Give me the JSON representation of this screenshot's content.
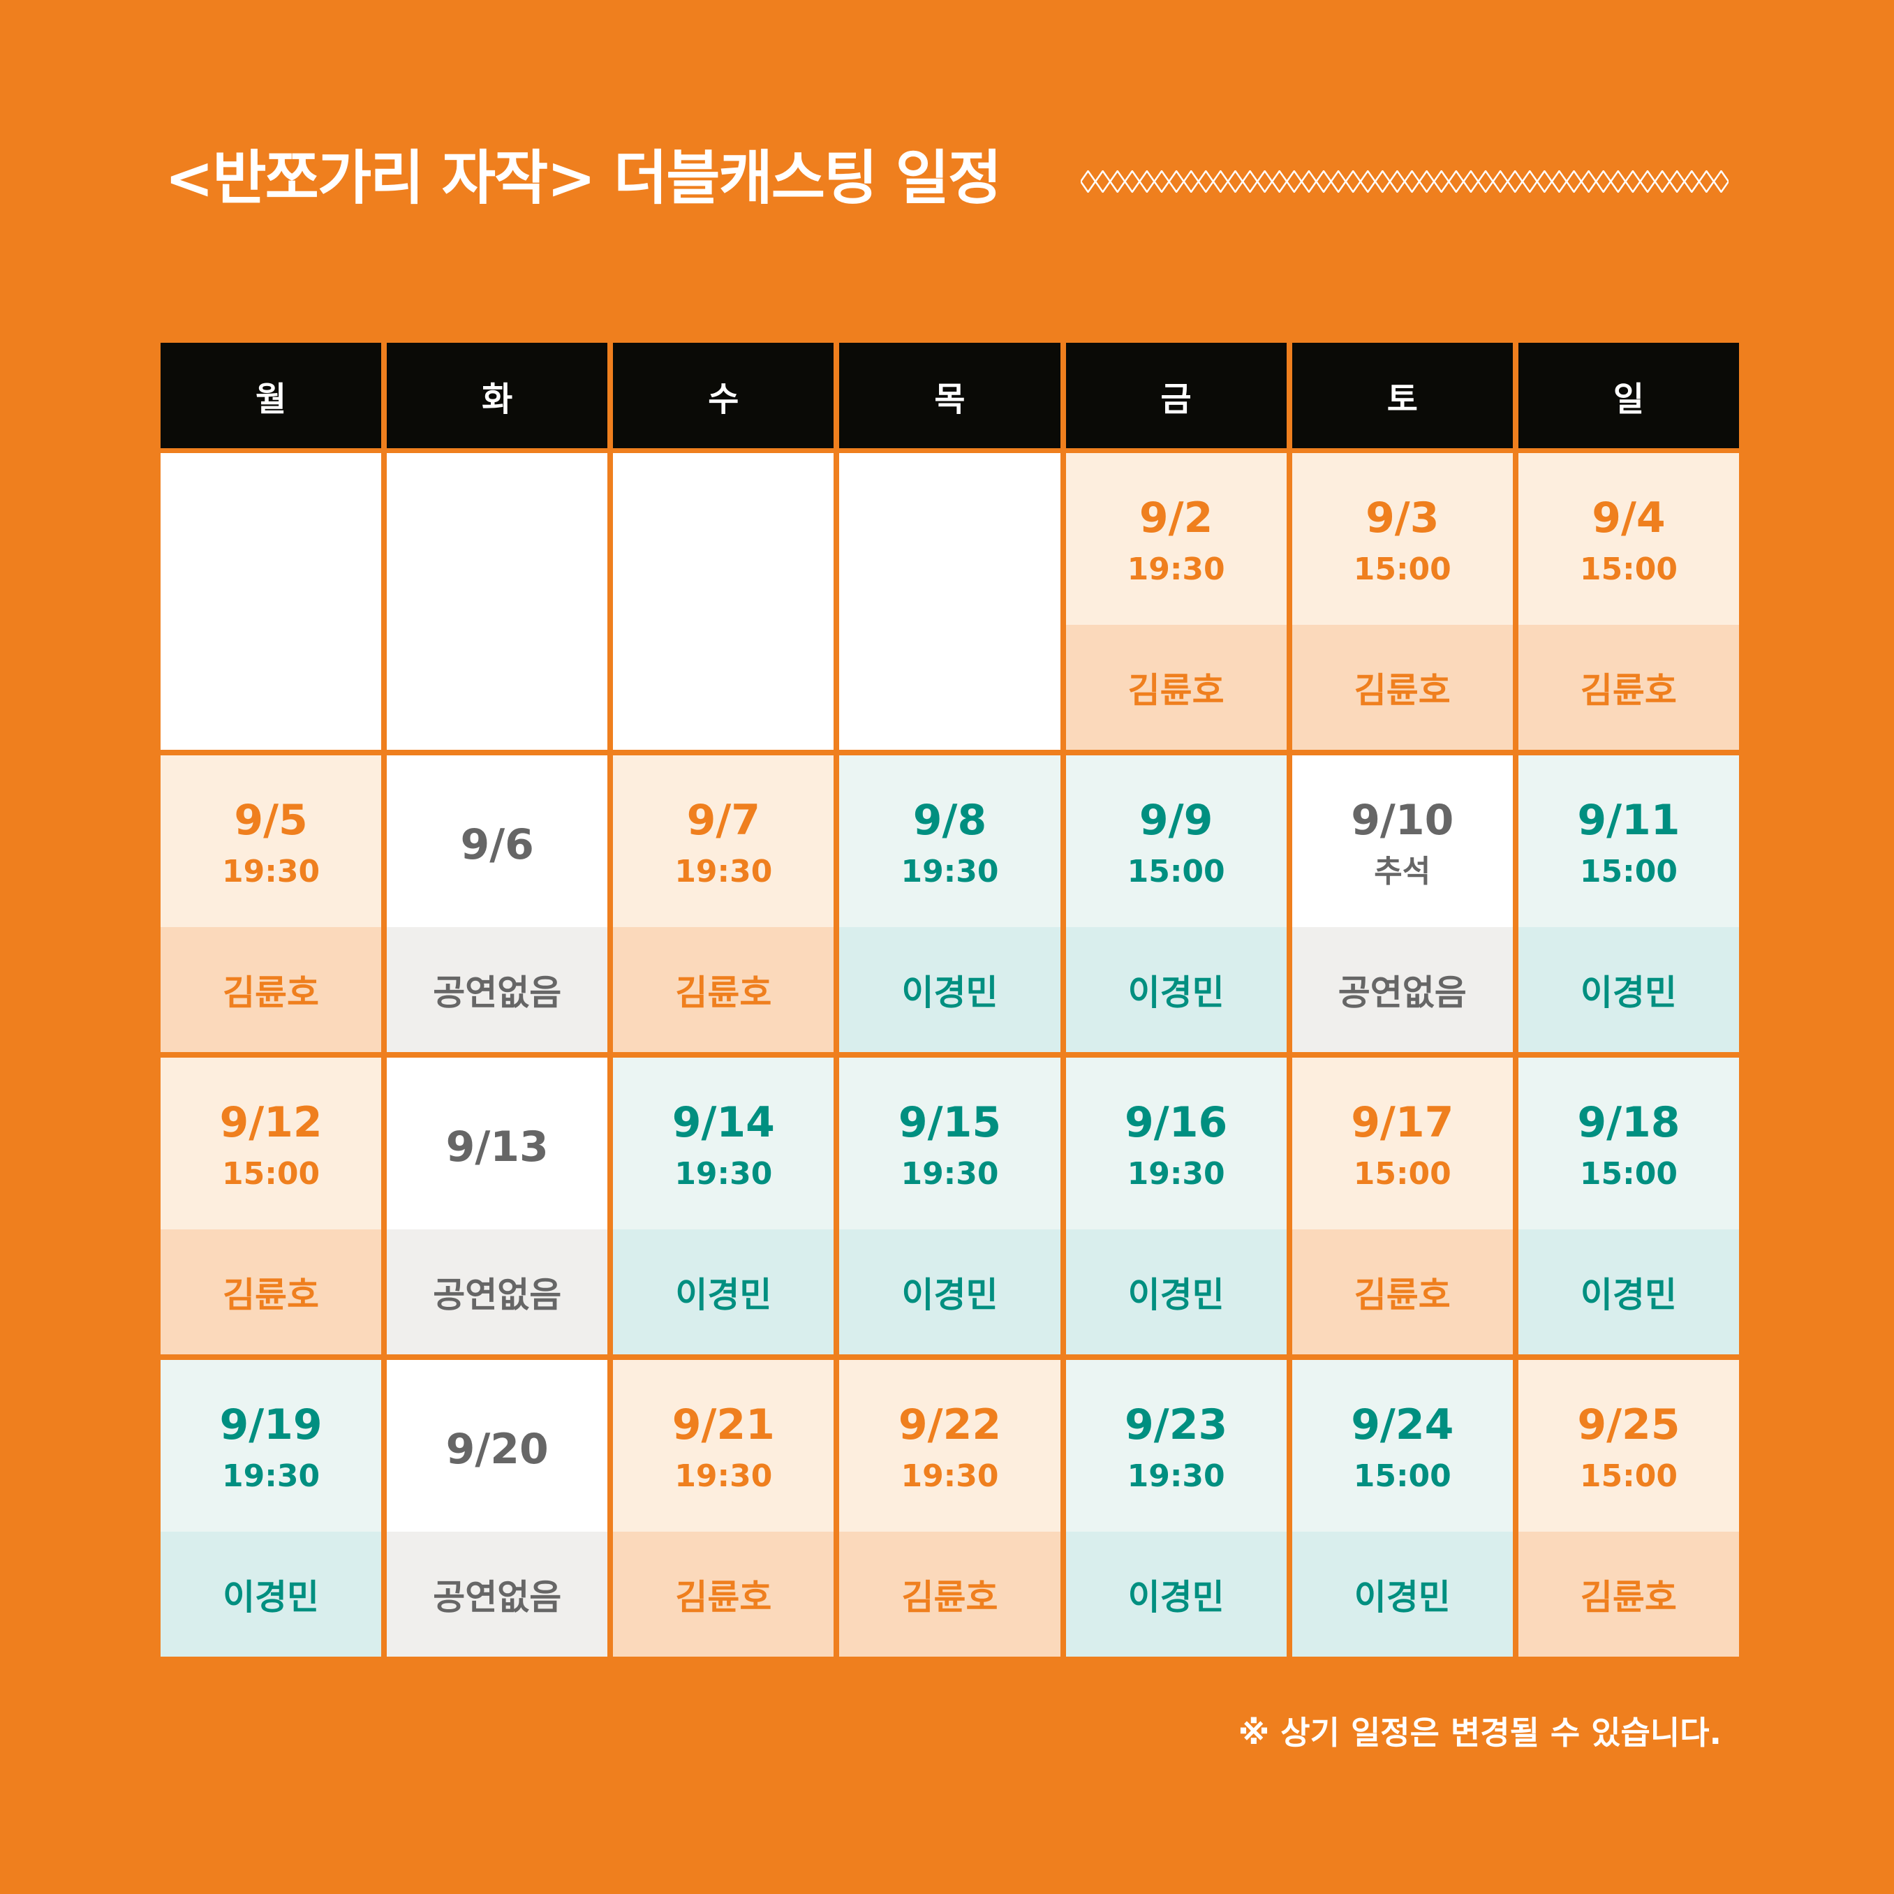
{
  "title": "<반쪼가리 자작> 더블캐스팅 일정",
  "colors": {
    "background": "#ef7f1e",
    "header": "#0a0a06",
    "orange_cast": "#ef7f1e",
    "teal_cast": "#008f80",
    "no_show": "#666666"
  },
  "days": [
    "월",
    "화",
    "수",
    "목",
    "금",
    "토",
    "일"
  ],
  "weeks": [
    [
      {
        "type": "empty"
      },
      {
        "type": "empty"
      },
      {
        "type": "empty"
      },
      {
        "type": "empty"
      },
      {
        "type": "o",
        "date": "9/2",
        "sub": "19:30",
        "name": "김륜호"
      },
      {
        "type": "o",
        "date": "9/3",
        "sub": "15:00",
        "name": "김륜호"
      },
      {
        "type": "o",
        "date": "9/4",
        "sub": "15:00",
        "name": "김륜호"
      }
    ],
    [
      {
        "type": "o",
        "date": "9/5",
        "sub": "19:30",
        "name": "김륜호"
      },
      {
        "type": "g",
        "date": "9/6",
        "sub": "",
        "name": "공연없음"
      },
      {
        "type": "o",
        "date": "9/7",
        "sub": "19:30",
        "name": "김륜호"
      },
      {
        "type": "t",
        "date": "9/8",
        "sub": "19:30",
        "name": "이경민"
      },
      {
        "type": "t",
        "date": "9/9",
        "sub": "15:00",
        "name": "이경민"
      },
      {
        "type": "g",
        "date": "9/10",
        "sub": "추석",
        "name": "공연없음"
      },
      {
        "type": "t",
        "date": "9/11",
        "sub": "15:00",
        "name": "이경민"
      }
    ],
    [
      {
        "type": "o",
        "date": "9/12",
        "sub": "15:00",
        "name": "김륜호"
      },
      {
        "type": "g",
        "date": "9/13",
        "sub": "",
        "name": "공연없음"
      },
      {
        "type": "t",
        "date": "9/14",
        "sub": "19:30",
        "name": "이경민"
      },
      {
        "type": "t",
        "date": "9/15",
        "sub": "19:30",
        "name": "이경민"
      },
      {
        "type": "t",
        "date": "9/16",
        "sub": "19:30",
        "name": "이경민"
      },
      {
        "type": "o",
        "date": "9/17",
        "sub": "15:00",
        "name": "김륜호"
      },
      {
        "type": "t",
        "date": "9/18",
        "sub": "15:00",
        "name": "이경민"
      }
    ],
    [
      {
        "type": "t",
        "date": "9/19",
        "sub": "19:30",
        "name": "이경민"
      },
      {
        "type": "g",
        "date": "9/20",
        "sub": "",
        "name": "공연없음"
      },
      {
        "type": "o",
        "date": "9/21",
        "sub": "19:30",
        "name": "김륜호"
      },
      {
        "type": "o",
        "date": "9/22",
        "sub": "19:30",
        "name": "김륜호"
      },
      {
        "type": "t",
        "date": "9/23",
        "sub": "19:30",
        "name": "이경민"
      },
      {
        "type": "t",
        "date": "9/24",
        "sub": "15:00",
        "name": "이경민"
      },
      {
        "type": "o",
        "date": "9/25",
        "sub": "15:00",
        "name": "김륜호"
      }
    ]
  ],
  "note": "※ 상기 일정은 변경될 수 있습니다."
}
